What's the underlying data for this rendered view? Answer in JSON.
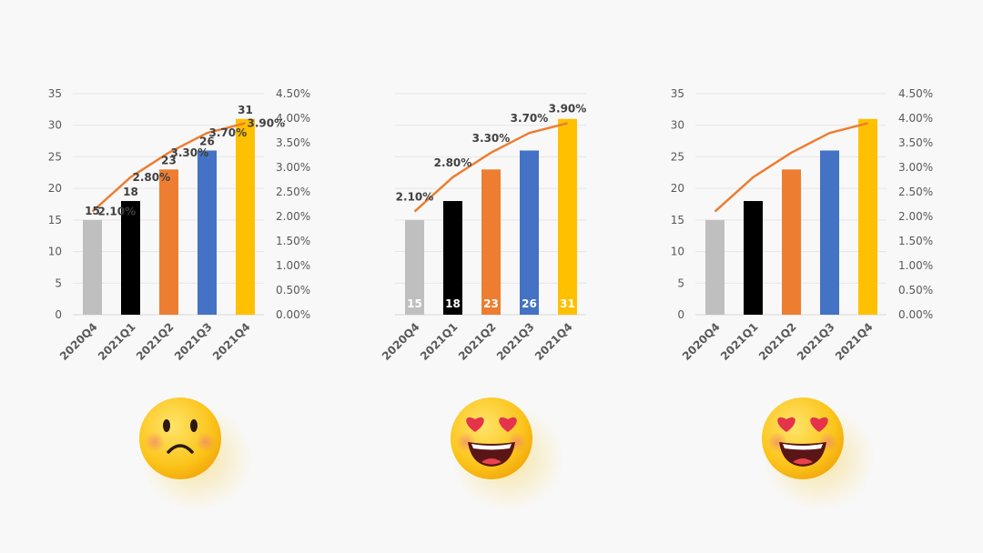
{
  "chart_data": [
    {
      "type": "bar+line",
      "variant": "all-labels-crowded",
      "categories": [
        "2020Q4",
        "2021Q1",
        "2021Q2",
        "2021Q3",
        "2021Q4"
      ],
      "bar_values": [
        15,
        18,
        23,
        26,
        31
      ],
      "bar_colors": [
        "#bfbfbf",
        "#000000",
        "#ed7d31",
        "#4472c4",
        "#ffc000"
      ],
      "line_values": [
        2.1,
        2.8,
        3.3,
        3.7,
        3.9
      ],
      "line_color": "#ed7d31",
      "bar_labels": [
        "15",
        "18",
        "23",
        "26",
        "31"
      ],
      "line_labels": [
        "2.10%",
        "2.80%",
        "3.30%",
        "3.70%",
        "3.90%"
      ],
      "y_left_ticks": [
        "0",
        "5",
        "10",
        "15",
        "20",
        "25",
        "30",
        "35"
      ],
      "y_right_ticks": [
        "0.00%",
        "0.50%",
        "1.00%",
        "1.50%",
        "2.00%",
        "2.50%",
        "3.00%",
        "3.50%",
        "4.00%",
        "4.50%"
      ],
      "show_left_axis": true,
      "show_right_axis": true,
      "ylim_left": [
        0,
        35
      ],
      "ylim_right": [
        0,
        4.5
      ],
      "grid": true,
      "emoji": "sad-face-icon"
    },
    {
      "type": "bar+line",
      "variant": "labels-inside-bars",
      "categories": [
        "2020Q4",
        "2021Q1",
        "2021Q2",
        "2021Q3",
        "2021Q4"
      ],
      "bar_values": [
        15,
        18,
        23,
        26,
        31
      ],
      "bar_colors": [
        "#bfbfbf",
        "#000000",
        "#ed7d31",
        "#4472c4",
        "#ffc000"
      ],
      "line_values": [
        2.1,
        2.8,
        3.3,
        3.7,
        3.9
      ],
      "line_color": "#ed7d31",
      "bar_labels": [
        "15",
        "18",
        "23",
        "26",
        "31"
      ],
      "line_labels": [
        "2.10%",
        "2.80%",
        "3.30%",
        "3.70%",
        "3.90%"
      ],
      "y_left_ticks": [],
      "y_right_ticks": [],
      "show_left_axis": false,
      "show_right_axis": false,
      "ylim_left": [
        0,
        35
      ],
      "ylim_right": [
        0,
        4.5
      ],
      "grid": true,
      "emoji": "heart-eyes-face-icon"
    },
    {
      "type": "bar+line",
      "variant": "no-data-labels",
      "categories": [
        "2020Q4",
        "2021Q1",
        "2021Q2",
        "2021Q3",
        "2021Q4"
      ],
      "bar_values": [
        15,
        18,
        23,
        26,
        31
      ],
      "bar_colors": [
        "#bfbfbf",
        "#000000",
        "#ed7d31",
        "#4472c4",
        "#ffc000"
      ],
      "line_values": [
        2.1,
        2.8,
        3.3,
        3.7,
        3.9
      ],
      "line_color": "#ed7d31",
      "bar_labels": [],
      "line_labels": [],
      "y_left_ticks": [
        "0",
        "5",
        "10",
        "15",
        "20",
        "25",
        "30",
        "35"
      ],
      "y_right_ticks": [
        "0.00%",
        "0.50%",
        "1.00%",
        "1.50%",
        "2.00%",
        "2.50%",
        "3.00%",
        "3.50%",
        "4.00%",
        "4.50%"
      ],
      "show_left_axis": true,
      "show_right_axis": true,
      "ylim_left": [
        0,
        35
      ],
      "ylim_right": [
        0,
        4.5
      ],
      "grid": true,
      "emoji": "heart-eyes-face-icon"
    }
  ]
}
